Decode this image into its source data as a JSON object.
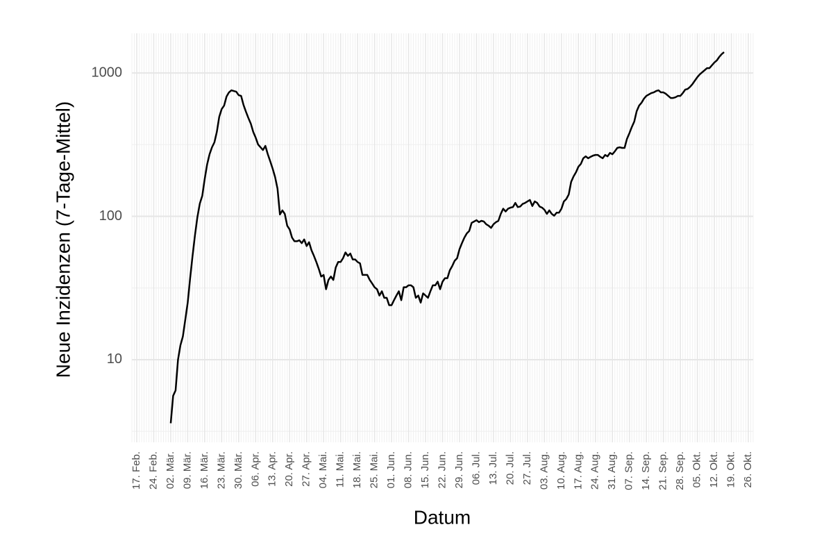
{
  "chart_data": {
    "type": "line",
    "x_label": "Datum",
    "y_label": "Neue Inzidenzen (7-Tage-Mittel)",
    "color": "#000000",
    "log_scale": true,
    "grid": true,
    "xlim": [
      -2,
      254
    ],
    "ylim": [
      2.65,
      1890
    ],
    "xticks": [
      {
        "value": 0,
        "label": "17. Feb."
      },
      {
        "value": 7,
        "label": "24. Feb."
      },
      {
        "value": 14,
        "label": "02. Mär."
      },
      {
        "value": 21,
        "label": "09. Mär."
      },
      {
        "value": 28,
        "label": "16. Mär."
      },
      {
        "value": 35,
        "label": "23. Mär."
      },
      {
        "value": 42,
        "label": "30. Mär."
      },
      {
        "value": 49,
        "label": "06. Apr."
      },
      {
        "value": 56,
        "label": "13. Apr."
      },
      {
        "value": 63,
        "label": "20. Apr."
      },
      {
        "value": 70,
        "label": "27. Apr."
      },
      {
        "value": 77,
        "label": "04. Mai."
      },
      {
        "value": 84,
        "label": "11. Mai."
      },
      {
        "value": 91,
        "label": "18. Mai."
      },
      {
        "value": 98,
        "label": "25. Mai."
      },
      {
        "value": 105,
        "label": "01. Jun."
      },
      {
        "value": 112,
        "label": "08. Jun."
      },
      {
        "value": 119,
        "label": "15. Jun."
      },
      {
        "value": 126,
        "label": "22. Jun."
      },
      {
        "value": 133,
        "label": "29. Jun."
      },
      {
        "value": 140,
        "label": "06. Jul."
      },
      {
        "value": 147,
        "label": "13. Jul."
      },
      {
        "value": 154,
        "label": "20. Jul."
      },
      {
        "value": 161,
        "label": "27. Jul."
      },
      {
        "value": 168,
        "label": "03. Aug."
      },
      {
        "value": 175,
        "label": "10. Aug."
      },
      {
        "value": 182,
        "label": "17. Aug."
      },
      {
        "value": 189,
        "label": "24. Aug."
      },
      {
        "value": 196,
        "label": "31. Aug."
      },
      {
        "value": 203,
        "label": "07. Sep."
      },
      {
        "value": 210,
        "label": "14. Sep."
      },
      {
        "value": 217,
        "label": "21. Sep."
      },
      {
        "value": 224,
        "label": "28. Sep."
      },
      {
        "value": 231,
        "label": "05. Okt."
      },
      {
        "value": 238,
        "label": "12. Okt."
      },
      {
        "value": 245,
        "label": "19. Okt."
      },
      {
        "value": 252,
        "label": "26. Okt."
      }
    ],
    "yticks": [
      10,
      100,
      1000
    ],
    "x": [
      14,
      15,
      16,
      17,
      18,
      19,
      20,
      21,
      22,
      23,
      24,
      25,
      26,
      27,
      28,
      29,
      30,
      31,
      32,
      33,
      34,
      35,
      36,
      37,
      38,
      39,
      40,
      41,
      42,
      43,
      44,
      45,
      46,
      47,
      48,
      49,
      50,
      51,
      52,
      53,
      54,
      55,
      56,
      57,
      58,
      59,
      60,
      61,
      62,
      63,
      64,
      65,
      66,
      67,
      68,
      69,
      70,
      71,
      72,
      73,
      74,
      75,
      76,
      77,
      78,
      79,
      80,
      81,
      82,
      83,
      84,
      85,
      86,
      87,
      88,
      89,
      90,
      91,
      92,
      93,
      94,
      95,
      96,
      97,
      98,
      99,
      100,
      101,
      102,
      103,
      104,
      105,
      106,
      107,
      108,
      109,
      110,
      111,
      112,
      113,
      114,
      115,
      116,
      117,
      118,
      119,
      120,
      121,
      122,
      123,
      124,
      125,
      126,
      127,
      128,
      129,
      130,
      131,
      132,
      133,
      134,
      135,
      136,
      137,
      138,
      139,
      140,
      141,
      142,
      143,
      144,
      145,
      146,
      147,
      148,
      149,
      150,
      151,
      152,
      153,
      154,
      155,
      156,
      157,
      158,
      159,
      160,
      161,
      162,
      163,
      164,
      165,
      166,
      167,
      168,
      169,
      170,
      171,
      172,
      173,
      174,
      175,
      176,
      177,
      178,
      179,
      180,
      181,
      182,
      183,
      184,
      185,
      186,
      187,
      188,
      189,
      190,
      191,
      192,
      193,
      194,
      195,
      196,
      197,
      198,
      199,
      200,
      201,
      202,
      203,
      204,
      205,
      206,
      207,
      208,
      209,
      210,
      211,
      212,
      213,
      214,
      215,
      216,
      217,
      218,
      219,
      220,
      221,
      222,
      223,
      224,
      225,
      226,
      227,
      228,
      229,
      230,
      231,
      232,
      233,
      234,
      235,
      236,
      237,
      238,
      239,
      240,
      241,
      242
    ],
    "values": [
      3.6,
      5.6,
      6.1,
      10,
      12.6,
      14.5,
      19,
      25,
      37,
      53,
      74,
      99,
      123,
      139,
      182,
      230,
      271,
      303,
      328,
      388,
      495,
      560,
      592,
      685,
      732,
      757,
      748,
      740,
      700,
      692,
      598,
      536,
      485,
      443,
      388,
      354,
      317,
      303,
      290,
      310,
      271,
      242,
      215,
      188,
      156,
      103,
      110,
      104,
      86,
      81,
      71,
      67,
      67,
      68,
      65,
      69,
      62,
      66,
      58,
      53,
      48,
      43,
      38,
      39,
      31,
      36,
      38,
      36,
      44,
      48,
      48,
      51,
      56,
      53,
      55,
      50,
      50,
      48,
      47,
      39,
      39,
      39,
      36,
      34,
      32,
      31,
      28,
      30,
      27,
      27,
      24,
      24,
      26,
      28,
      30,
      26,
      32,
      32,
      33,
      33,
      32,
      27,
      28,
      25,
      29,
      28,
      27,
      30,
      33,
      33,
      35,
      31,
      35,
      37,
      37,
      42,
      45,
      49,
      51,
      59,
      65,
      71,
      76,
      79,
      90,
      92,
      94,
      91,
      93,
      92,
      88,
      86,
      83,
      88,
      91,
      93,
      104,
      113,
      108,
      113,
      115,
      116,
      124,
      116,
      117,
      122,
      124,
      127,
      130,
      118,
      127,
      124,
      117,
      115,
      111,
      104,
      110,
      104,
      101,
      106,
      106,
      113,
      127,
      132,
      142,
      174,
      190,
      203,
      222,
      232,
      254,
      262,
      254,
      260,
      265,
      268,
      268,
      260,
      254,
      268,
      262,
      277,
      271,
      284,
      300,
      303,
      300,
      300,
      347,
      380,
      420,
      458,
      541,
      592,
      620,
      662,
      692,
      708,
      724,
      732,
      748,
      757,
      732,
      732,
      716,
      692,
      669,
      669,
      677,
      692,
      692,
      724,
      765,
      774,
      800,
      837,
      885,
      935,
      978,
      1011,
      1045,
      1081,
      1081,
      1131,
      1182,
      1222,
      1292,
      1351,
      1397
    ]
  }
}
